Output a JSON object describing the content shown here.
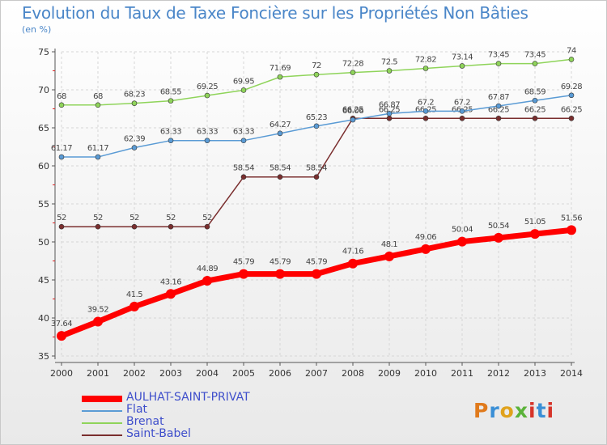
{
  "title": "Evolution du Taux de Taxe Foncière sur les Propriétés Non Bâties",
  "subtitle": "(en %)",
  "logo": {
    "text": "Proxiti",
    "letter_colors": [
      "#e07a1c",
      "#3a8fd6",
      "#e0a21c",
      "#5bb33a",
      "#d6342a",
      "#3a8fd6",
      "#d6342a"
    ]
  },
  "chart_data": {
    "type": "line",
    "x": [
      2000,
      2001,
      2002,
      2003,
      2004,
      2005,
      2006,
      2007,
      2008,
      2009,
      2010,
      2011,
      2012,
      2013,
      2014
    ],
    "ylim": [
      35,
      75
    ],
    "yticks": [
      35,
      40,
      45,
      50,
      55,
      60,
      65,
      70,
      75
    ],
    "grid": true,
    "legend_position": "bottom-left",
    "series": [
      {
        "name": "AULHAT-SAINT-PRIVAT",
        "color": "#ff0000",
        "values": [
          37.64,
          39.52,
          41.5,
          43.16,
          44.89,
          45.79,
          45.79,
          45.79,
          47.16,
          48.1,
          49.06,
          50.04,
          50.54,
          51.05,
          51.56
        ],
        "labels": [
          "37.64",
          "39.52",
          "41.5",
          "43.16",
          "44.89",
          "45.79",
          "45.79",
          "45.79",
          "47.16",
          "48.1",
          "49.06",
          "50.04",
          "50.54",
          "51.05",
          "51.56"
        ]
      },
      {
        "name": "Flat",
        "color": "#5a9bd5",
        "values": [
          61.17,
          61.17,
          62.39,
          63.33,
          63.33,
          63.33,
          64.27,
          65.23,
          66.06,
          66.87,
          67.2,
          67.2,
          67.87,
          68.59,
          69.28
        ],
        "labels": [
          "61.17",
          "61.17",
          "62.39",
          "63.33",
          "63.33",
          "63.33",
          "64.27",
          "65.23",
          "66.06",
          "66.87",
          "67.2",
          "67.2",
          "67.87",
          "68.59",
          "69.28"
        ]
      },
      {
        "name": "Brenat",
        "color": "#8fd45a",
        "values": [
          68,
          68,
          68.23,
          68.55,
          69.25,
          69.95,
          71.69,
          72,
          72.28,
          72.5,
          72.82,
          73.14,
          73.45,
          73.45,
          74
        ],
        "labels": [
          "68",
          "68",
          "68.23",
          "68.55",
          "69.25",
          "69.95",
          "71.69",
          "72",
          "72.28",
          "72.5",
          "72.82",
          "73.14",
          "73.45",
          "73.45",
          "74"
        ]
      },
      {
        "name": "Saint-Babel",
        "color": "#7a2e2e",
        "values": [
          52,
          52,
          52,
          52,
          52,
          58.54,
          58.54,
          58.54,
          66.25,
          66.25,
          66.25,
          66.25,
          66.25,
          66.25,
          66.25
        ],
        "labels": [
          "52",
          "52",
          "52",
          "52",
          "52",
          "58.54",
          "58.54",
          "58.54",
          "66.25",
          "66.25",
          "66.25",
          "66.25",
          "66.25",
          "66.25",
          "66.25"
        ]
      }
    ]
  }
}
